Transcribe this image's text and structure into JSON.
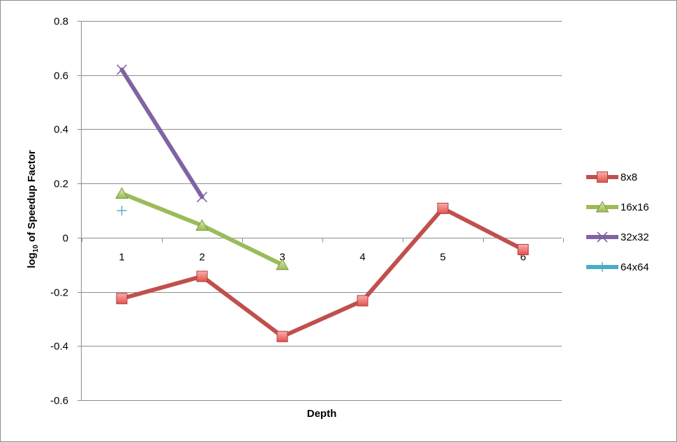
{
  "chart_data": {
    "type": "line",
    "title": "",
    "xlabel": "Depth",
    "ylabel": {
      "prefix": "log",
      "subscript": "10",
      "suffix": " of Speedup Factor"
    },
    "categories": [
      "1",
      "2",
      "3",
      "4",
      "5",
      "6"
    ],
    "ylim": [
      -0.6,
      0.8
    ],
    "yticks": [
      0.8,
      0.6,
      0.4,
      0.2,
      0,
      -0.2,
      -0.4,
      -0.6
    ],
    "ytick_labels": [
      "0.8",
      "0.6",
      "0.4",
      "0.2",
      "0",
      "-0.2",
      "-0.4",
      "-0.6"
    ],
    "grid": true,
    "legend_position": "right",
    "series": [
      {
        "name": "8x8",
        "color": "#c0504d",
        "marker": "square",
        "values": [
          -0.225,
          -0.143,
          -0.365,
          -0.233,
          0.108,
          -0.044
        ]
      },
      {
        "name": "16x16",
        "color": "#9bbb59",
        "marker": "triangle",
        "values": [
          0.163,
          0.045,
          -0.1,
          null,
          null,
          null
        ]
      },
      {
        "name": "32x32",
        "color": "#8064a2",
        "marker": "x",
        "values": [
          0.62,
          0.15,
          null,
          null,
          null,
          null
        ]
      },
      {
        "name": "64x64",
        "color": "#4bacc6",
        "marker": "plus",
        "values": [
          0.1,
          null,
          null,
          null,
          null,
          null
        ]
      }
    ]
  }
}
